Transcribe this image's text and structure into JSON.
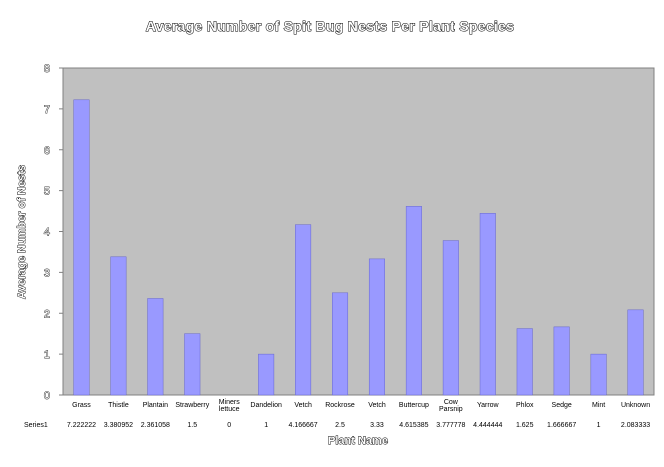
{
  "chart_data": {
    "type": "bar",
    "title": "Average Number of Spit Bug Nests Per Plant Species",
    "xlabel": "Plant Name",
    "ylabel": "Average Number of Nests",
    "ylim": [
      0,
      8
    ],
    "yticks": [
      0,
      1,
      2,
      3,
      4,
      5,
      6,
      7,
      8
    ],
    "grid": false,
    "plot_background": "#c0c0c0",
    "bar_color": "#9999ff",
    "categories": [
      "Grass",
      "Thistle",
      "Plantain",
      "Strawberry",
      "Miner's Lettuce",
      "Dandelion",
      "Vetch",
      "Rockrose",
      "Vetch",
      "Buttercup",
      "Cow Parsnip",
      "Yarrow",
      "Phlox",
      "Sedge",
      "Mint",
      "Unknown"
    ],
    "category_labels": [
      "Grass",
      "Thistle",
      "Plantain",
      "Strawberry",
      "Miners\nlettuce",
      "Dandelion",
      "Vetch",
      "Rockrose",
      "Vetch",
      "Buttercup",
      "Cow\nParsnip",
      "Yarrow",
      "Phlox",
      "Sedge",
      "Mint",
      "Unknown"
    ],
    "series": [
      {
        "name": "Series1",
        "values": [
          7.222222,
          3.380952,
          2.361058,
          1.5,
          0,
          1,
          4.166667,
          2.5,
          3.33,
          4.615385,
          3.777778,
          4.444444,
          1.625,
          1.666667,
          1,
          2.083333
        ],
        "value_labels": [
          "7.222222",
          "3.380952",
          "2.361058",
          "1.5",
          "0",
          "1",
          "4.166667",
          "2.5",
          "3.33",
          "4.615385",
          "3.777778",
          "4.444444",
          "1.625",
          "1.666667",
          "1",
          "2.083333"
        ]
      }
    ]
  }
}
